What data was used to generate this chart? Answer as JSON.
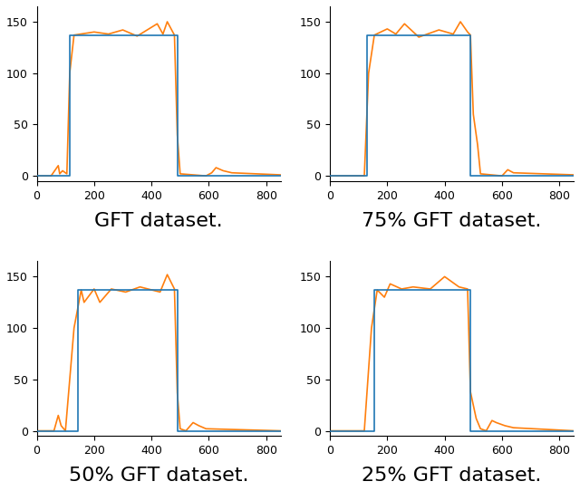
{
  "subplots": [
    {
      "label": "GFT dataset.",
      "blue": {
        "x": [
          0,
          115,
          115,
          490,
          490,
          850
        ],
        "y": [
          0,
          0,
          137,
          137,
          0,
          0
        ]
      },
      "orange": {
        "segments": [
          {
            "x": [
              0,
              50
            ],
            "y": [
              0,
              0
            ]
          },
          {
            "x": [
              50,
              75
            ],
            "y": [
              0,
              10
            ]
          },
          {
            "x": [
              75,
              80
            ],
            "y": [
              10,
              2
            ]
          },
          {
            "x": [
              80,
              90
            ],
            "y": [
              2,
              5
            ]
          },
          {
            "x": [
              90,
              105
            ],
            "y": [
              5,
              2
            ]
          },
          {
            "x": [
              105,
              115
            ],
            "y": [
              2,
              100
            ]
          },
          {
            "x": [
              115,
              130
            ],
            "y": [
              100,
              137
            ]
          },
          {
            "x": [
              130,
              200
            ],
            "y": [
              137,
              140
            ]
          },
          {
            "x": [
              200,
              250
            ],
            "y": [
              140,
              138
            ]
          },
          {
            "x": [
              250,
              300
            ],
            "y": [
              138,
              142
            ]
          },
          {
            "x": [
              300,
              350
            ],
            "y": [
              142,
              136
            ]
          },
          {
            "x": [
              350,
              420
            ],
            "y": [
              136,
              148
            ]
          },
          {
            "x": [
              420,
              440
            ],
            "y": [
              148,
              138
            ]
          },
          {
            "x": [
              440,
              455
            ],
            "y": [
              138,
              150
            ]
          },
          {
            "x": [
              455,
              480
            ],
            "y": [
              150,
              137
            ]
          },
          {
            "x": [
              480,
              490
            ],
            "y": [
              137,
              40
            ]
          },
          {
            "x": [
              490,
              500
            ],
            "y": [
              40,
              2
            ]
          },
          {
            "x": [
              500,
              590
            ],
            "y": [
              2,
              0
            ]
          },
          {
            "x": [
              590,
              610
            ],
            "y": [
              0,
              3
            ]
          },
          {
            "x": [
              610,
              625
            ],
            "y": [
              3,
              8
            ]
          },
          {
            "x": [
              625,
              650
            ],
            "y": [
              8,
              5
            ]
          },
          {
            "x": [
              650,
              680
            ],
            "y": [
              5,
              3
            ]
          },
          {
            "x": [
              680,
              850
            ],
            "y": [
              3,
              1
            ]
          }
        ]
      }
    },
    {
      "label": "75% GFT dataset.",
      "blue": {
        "x": [
          0,
          130,
          130,
          490,
          490,
          850
        ],
        "y": [
          0,
          0,
          137,
          137,
          0,
          0
        ]
      },
      "orange": {
        "segments": [
          {
            "x": [
              0,
              120
            ],
            "y": [
              0,
              0
            ]
          },
          {
            "x": [
              120,
              135
            ],
            "y": [
              0,
              100
            ]
          },
          {
            "x": [
              135,
              155
            ],
            "y": [
              100,
              137
            ]
          },
          {
            "x": [
              155,
              200
            ],
            "y": [
              137,
              143
            ]
          },
          {
            "x": [
              200,
              230
            ],
            "y": [
              143,
              138
            ]
          },
          {
            "x": [
              230,
              260
            ],
            "y": [
              138,
              148
            ]
          },
          {
            "x": [
              260,
              310
            ],
            "y": [
              148,
              135
            ]
          },
          {
            "x": [
              310,
              380
            ],
            "y": [
              135,
              142
            ]
          },
          {
            "x": [
              380,
              430
            ],
            "y": [
              142,
              138
            ]
          },
          {
            "x": [
              430,
              455
            ],
            "y": [
              138,
              150
            ]
          },
          {
            "x": [
              455,
              480
            ],
            "y": [
              150,
              140
            ]
          },
          {
            "x": [
              480,
              490
            ],
            "y": [
              140,
              137
            ]
          },
          {
            "x": [
              490,
              500
            ],
            "y": [
              137,
              60
            ]
          },
          {
            "x": [
              500,
              515
            ],
            "y": [
              60,
              30
            ]
          },
          {
            "x": [
              515,
              525
            ],
            "y": [
              30,
              2
            ]
          },
          {
            "x": [
              525,
              600
            ],
            "y": [
              2,
              0
            ]
          },
          {
            "x": [
              600,
              620
            ],
            "y": [
              0,
              6
            ]
          },
          {
            "x": [
              620,
              640
            ],
            "y": [
              6,
              3
            ]
          },
          {
            "x": [
              640,
              850
            ],
            "y": [
              3,
              1
            ]
          }
        ]
      }
    },
    {
      "label": "50% GFT dataset.",
      "blue": {
        "x": [
          0,
          145,
          145,
          490,
          490,
          850
        ],
        "y": [
          0,
          0,
          137,
          137,
          0,
          0
        ]
      },
      "orange": {
        "segments": [
          {
            "x": [
              0,
              60
            ],
            "y": [
              0,
              0
            ]
          },
          {
            "x": [
              60,
              75
            ],
            "y": [
              0,
              15
            ]
          },
          {
            "x": [
              75,
              85
            ],
            "y": [
              15,
              5
            ]
          },
          {
            "x": [
              85,
              100
            ],
            "y": [
              5,
              0
            ]
          },
          {
            "x": [
              100,
              130
            ],
            "y": [
              0,
              100
            ]
          },
          {
            "x": [
              130,
              155
            ],
            "y": [
              100,
              137
            ]
          },
          {
            "x": [
              155,
              165
            ],
            "y": [
              137,
              125
            ]
          },
          {
            "x": [
              165,
              200
            ],
            "y": [
              125,
              138
            ]
          },
          {
            "x": [
              200,
              220
            ],
            "y": [
              138,
              125
            ]
          },
          {
            "x": [
              220,
              260
            ],
            "y": [
              125,
              138
            ]
          },
          {
            "x": [
              260,
              310
            ],
            "y": [
              138,
              135
            ]
          },
          {
            "x": [
              310,
              360
            ],
            "y": [
              135,
              140
            ]
          },
          {
            "x": [
              360,
              430
            ],
            "y": [
              140,
              135
            ]
          },
          {
            "x": [
              430,
              455
            ],
            "y": [
              135,
              152
            ]
          },
          {
            "x": [
              455,
              480
            ],
            "y": [
              152,
              138
            ]
          },
          {
            "x": [
              480,
              490
            ],
            "y": [
              138,
              37
            ]
          },
          {
            "x": [
              490,
              500
            ],
            "y": [
              37,
              2
            ]
          },
          {
            "x": [
              500,
              520
            ],
            "y": [
              2,
              0
            ]
          },
          {
            "x": [
              520,
              545
            ],
            "y": [
              0,
              8
            ]
          },
          {
            "x": [
              545,
              565
            ],
            "y": [
              8,
              5
            ]
          },
          {
            "x": [
              565,
              590
            ],
            "y": [
              5,
              2
            ]
          },
          {
            "x": [
              590,
              850
            ],
            "y": [
              2,
              0
            ]
          }
        ]
      }
    },
    {
      "label": "25% GFT dataset.",
      "blue": {
        "x": [
          0,
          155,
          155,
          490,
          490,
          850
        ],
        "y": [
          0,
          0,
          137,
          137,
          0,
          0
        ]
      },
      "orange": {
        "segments": [
          {
            "x": [
              0,
              120
            ],
            "y": [
              0,
              0
            ]
          },
          {
            "x": [
              120,
              145
            ],
            "y": [
              0,
              100
            ]
          },
          {
            "x": [
              145,
              165
            ],
            "y": [
              100,
              137
            ]
          },
          {
            "x": [
              165,
              190
            ],
            "y": [
              137,
              130
            ]
          },
          {
            "x": [
              190,
              210
            ],
            "y": [
              130,
              143
            ]
          },
          {
            "x": [
              210,
              250
            ],
            "y": [
              143,
              138
            ]
          },
          {
            "x": [
              250,
              290
            ],
            "y": [
              138,
              140
            ]
          },
          {
            "x": [
              290,
              350
            ],
            "y": [
              140,
              138
            ]
          },
          {
            "x": [
              350,
              400
            ],
            "y": [
              138,
              150
            ]
          },
          {
            "x": [
              400,
              450
            ],
            "y": [
              150,
              140
            ]
          },
          {
            "x": [
              450,
              480
            ],
            "y": [
              140,
              138
            ]
          },
          {
            "x": [
              480,
              490
            ],
            "y": [
              138,
              38
            ]
          },
          {
            "x": [
              490,
              510
            ],
            "y": [
              38,
              12
            ]
          },
          {
            "x": [
              510,
              525
            ],
            "y": [
              12,
              2
            ]
          },
          {
            "x": [
              525,
              545
            ],
            "y": [
              2,
              0
            ]
          },
          {
            "x": [
              545,
              565
            ],
            "y": [
              0,
              10
            ]
          },
          {
            "x": [
              565,
              580
            ],
            "y": [
              10,
              8
            ]
          },
          {
            "x": [
              580,
              610
            ],
            "y": [
              8,
              5
            ]
          },
          {
            "x": [
              610,
              640
            ],
            "y": [
              5,
              3
            ]
          },
          {
            "x": [
              640,
              850
            ],
            "y": [
              3,
              0
            ]
          }
        ]
      }
    }
  ],
  "blue_color": "#1f77b4",
  "orange_color": "#ff7f0e",
  "xlim": [
    0,
    850
  ],
  "ylim": [
    -5,
    165
  ],
  "yticks": [
    0,
    50,
    100,
    150
  ],
  "xticks": [
    0,
    200,
    400,
    600,
    800
  ],
  "label_fontsize": 16,
  "tick_fontsize": 9,
  "linewidth": 1.2,
  "figsize": [
    6.4,
    5.42
  ],
  "dpi": 100
}
